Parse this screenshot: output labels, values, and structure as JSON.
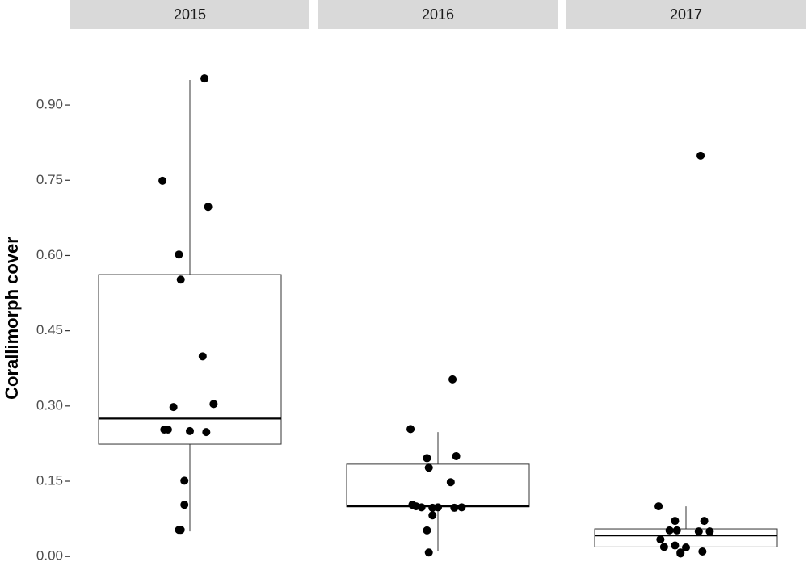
{
  "chart_data": {
    "type": "box",
    "y_label": "Corallimorph cover",
    "categories": [
      "2015",
      "2016",
      "2017"
    ],
    "ylim": [
      -0.019,
      1.045
    ],
    "yticks": [
      {
        "value": 0,
        "label": "0.00"
      },
      {
        "value": 0.15,
        "label": "0.15"
      },
      {
        "value": 0.3,
        "label": "0.30"
      },
      {
        "value": 0.45,
        "label": "0.45"
      },
      {
        "value": 0.6,
        "label": "0.60"
      },
      {
        "value": 0.75,
        "label": "0.75"
      },
      {
        "value": 0.9,
        "label": "0.90"
      }
    ],
    "color": "#000000",
    "boxes": [
      {
        "whisker_low": 0.05,
        "q1": 0.224,
        "median": 0.275,
        "q3": 0.562,
        "whisker_high": 0.95
      },
      {
        "whisker_low": 0.01,
        "q1": 0.099,
        "median": 0.1,
        "q3": 0.184,
        "whisker_high": 0.248
      },
      {
        "whisker_low": 0.015,
        "q1": 0.019,
        "median": 0.042,
        "q3": 0.055,
        "whisker_high": 0.1
      }
    ],
    "points": [
      [
        0.953,
        0.749,
        0.697,
        0.602,
        0.552,
        0.399,
        0.304,
        0.298,
        0.253,
        0.253,
        0.25,
        0.248,
        0.151,
        0.103,
        0.053,
        0.053
      ],
      [
        0.353,
        0.254,
        0.2,
        0.196,
        0.177,
        0.148,
        0.098,
        0.098,
        0.103,
        0.1,
        0.098,
        0.097,
        0.097,
        0.082,
        0.052,
        0.008
      ],
      [
        0.799,
        0.1,
        0.071,
        0.071,
        0.052,
        0.05,
        0.05,
        0.052,
        0.034,
        0.019,
        0.018,
        0.01,
        0.008,
        0.006,
        0.022
      ]
    ]
  }
}
